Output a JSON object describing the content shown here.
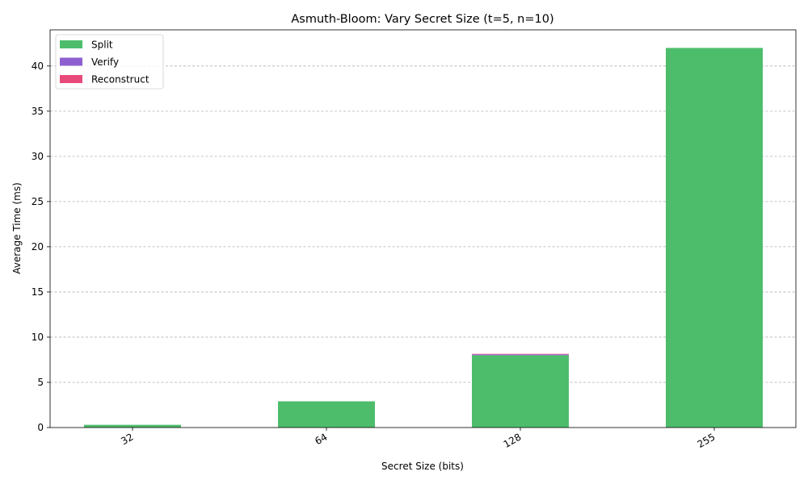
{
  "chart_data": {
    "type": "bar",
    "stacked": true,
    "title": "Asmuth-Bloom: Vary Secret Size (t=5, n=10)",
    "xlabel": "Secret Size (bits)",
    "ylabel": "Average Time (ms)",
    "categories": [
      "32",
      "64",
      "128",
      "255"
    ],
    "ylim": [
      0,
      44
    ],
    "yticks": [
      0,
      5,
      10,
      15,
      20,
      25,
      30,
      35,
      40
    ],
    "grid": "y-dashed",
    "legend_position": "top-left",
    "series": [
      {
        "name": "Split",
        "color": "#4dbd6c",
        "values": [
          0.3,
          2.9,
          8.0,
          42.0
        ]
      },
      {
        "name": "Verify",
        "color": "#8e5fd0",
        "values": [
          0.0,
          0.0,
          0.1,
          0.0
        ]
      },
      {
        "name": "Reconstruct",
        "color": "#e84a7a",
        "values": [
          0.0,
          0.0,
          0.05,
          0.0
        ]
      }
    ]
  }
}
